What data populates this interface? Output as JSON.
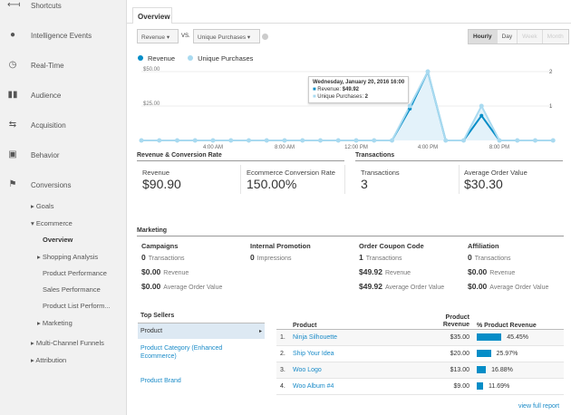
{
  "sidebar": {
    "items": [
      {
        "label": "Shortcuts",
        "icon": "shortcuts-icon"
      },
      {
        "label": "Intelligence Events",
        "icon": "lightbulb-icon"
      },
      {
        "label": "Real-Time",
        "icon": "clock-icon"
      },
      {
        "label": "Audience",
        "icon": "people-icon"
      },
      {
        "label": "Acquisition",
        "icon": "arrows-icon"
      },
      {
        "label": "Behavior",
        "icon": "layout-icon"
      },
      {
        "label": "Conversions",
        "icon": "flag-icon"
      }
    ],
    "sub": [
      "▸ Goals",
      "▾ Ecommerce",
      "Overview",
      "▸ Shopping Analysis",
      "Product Performance",
      "Sales Performance",
      "Product List Perform...",
      "▸ Marketing",
      "▸ Multi-Channel Funnels",
      "▸ Attribution"
    ]
  },
  "tab": "Overview",
  "metric1": "Revenue",
  "vs": "VS.",
  "metric2": "Unique Purchases",
  "granularity": [
    "Hourly",
    "Day",
    "Week",
    "Month"
  ],
  "colors": {
    "revenue": "#058dc7",
    "purchases": "#a9daf0"
  },
  "chart_data": {
    "type": "area",
    "x": [
      "12:00 AM",
      "1:00 AM",
      "2:00 AM",
      "3:00 AM",
      "4:00 AM",
      "5:00 AM",
      "6:00 AM",
      "7:00 AM",
      "8:00 AM",
      "9:00 AM",
      "10:00 AM",
      "11:00 AM",
      "12:00 PM",
      "1:00 PM",
      "2:00 PM",
      "3:00 PM",
      "4:00 PM",
      "5:00 PM",
      "6:00 PM",
      "7:00 PM",
      "8:00 PM",
      "9:00 PM",
      "10:00 PM",
      "11:00 PM"
    ],
    "xticks": [
      "4:00 AM",
      "8:00 AM",
      "12:00 PM",
      "4:00 PM",
      "8:00 PM"
    ],
    "series": [
      {
        "name": "Revenue",
        "axis": "left",
        "values": [
          0,
          0,
          0,
          0,
          0,
          0,
          0,
          0,
          0,
          0,
          0,
          0,
          0,
          0,
          0,
          22.99,
          49.92,
          0,
          0,
          17.99,
          0,
          0,
          0,
          0
        ]
      },
      {
        "name": "Unique Purchases",
        "axis": "right",
        "values": [
          0,
          0,
          0,
          0,
          0,
          0,
          0,
          0,
          0,
          0,
          0,
          0,
          0,
          0,
          0,
          1,
          2,
          0,
          0,
          1,
          0,
          0,
          0,
          0
        ]
      }
    ],
    "yleft": {
      "ticks": [
        "$25.00",
        "$50.00"
      ],
      "range": [
        0,
        50
      ]
    },
    "yright": {
      "ticks": [
        "1",
        "2"
      ],
      "range": [
        0,
        2
      ]
    },
    "legend": "top-left",
    "tooltip": {
      "title": "Wednesday, January 20, 2016 16:00",
      "rev_label": "Revenue:",
      "rev": "$49.92",
      "up_label": "Unique Purchases:",
      "up": "2"
    }
  },
  "rcr": {
    "title": "Revenue & Conversion Rate",
    "items": [
      {
        "label": "Revenue",
        "value": "$90.90"
      },
      {
        "label": "Ecommerce Conversion Rate",
        "value": "150.00%"
      }
    ]
  },
  "tx": {
    "title": "Transactions",
    "items": [
      {
        "label": "Transactions",
        "value": "3"
      },
      {
        "label": "Average Order Value",
        "value": "$30.30"
      }
    ]
  },
  "marketing": {
    "title": "Marketing",
    "cols": [
      {
        "title": "Campaigns",
        "rows": [
          {
            "v": "0",
            "l": "Transactions"
          },
          {
            "v": "$0.00",
            "l": "Revenue"
          },
          {
            "v": "$0.00",
            "l": "Average Order Value"
          }
        ]
      },
      {
        "title": "Internal Promotion",
        "rows": [
          {
            "v": "0",
            "l": "Impressions"
          }
        ]
      },
      {
        "title": "Order Coupon Code",
        "rows": [
          {
            "v": "1",
            "l": "Transactions"
          },
          {
            "v": "$49.92",
            "l": "Revenue"
          },
          {
            "v": "$49.92",
            "l": "Average Order Value"
          }
        ]
      },
      {
        "title": "Affiliation",
        "rows": [
          {
            "v": "0",
            "l": "Transactions"
          },
          {
            "v": "$0.00",
            "l": "Revenue"
          },
          {
            "v": "$0.00",
            "l": "Average Order Value"
          }
        ]
      }
    ]
  },
  "top": {
    "title": "Top Sellers",
    "items": [
      "Product",
      "Product Category (Enhanced Ecommerce)",
      "Product Brand"
    ]
  },
  "table": {
    "headers": [
      "Product",
      "Product Revenue",
      "% Product Revenue"
    ],
    "rows": [
      {
        "n": "1.",
        "name": "Ninja Silhouette",
        "rev": "$35.00",
        "pct": "45.45%",
        "frac": 45.45
      },
      {
        "n": "2.",
        "name": "Ship Your Idea",
        "rev": "$20.00",
        "pct": "25.97%",
        "frac": 25.97
      },
      {
        "n": "3.",
        "name": "Woo Logo",
        "rev": "$13.00",
        "pct": "16.88%",
        "frac": 16.88
      },
      {
        "n": "4.",
        "name": "Woo Album #4",
        "rev": "$9.00",
        "pct": "11.69%",
        "frac": 11.69
      }
    ],
    "view_full": "view full report"
  }
}
